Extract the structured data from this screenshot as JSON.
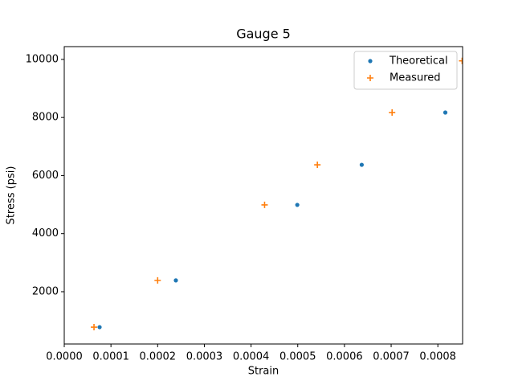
{
  "chart_data": {
    "type": "scatter",
    "title": "Gauge 5",
    "x_label": "Strain",
    "y_label": "Stress (psi)",
    "xlim": [
      0,
      0.000853
    ],
    "ylim": [
      200,
      10440
    ],
    "xticks": [
      {
        "value": 0,
        "label": "0.0000"
      },
      {
        "value": 0.0001,
        "label": "0.0001"
      },
      {
        "value": 0.0002,
        "label": "0.0002"
      },
      {
        "value": 0.0003,
        "label": "0.0003"
      },
      {
        "value": 0.0004,
        "label": "0.0004"
      },
      {
        "value": 0.0005,
        "label": "0.0005"
      },
      {
        "value": 0.0006,
        "label": "0.0006"
      },
      {
        "value": 0.0007,
        "label": "0.0007"
      },
      {
        "value": 0.0008,
        "label": "0.0008"
      }
    ],
    "yticks": [
      2000,
      4000,
      6000,
      8000,
      10000
    ],
    "legend": "upper right",
    "series": [
      {
        "name": "Theoretical",
        "color": "#1f77b4",
        "marker": "dot",
        "x": [
          7.57e-05,
          0.000239,
          0.000499,
          0.000637,
          0.000816
        ],
        "values": [
          780,
          2390,
          4990,
          6370,
          8170
        ]
      },
      {
        "name": "Measured",
        "color": "#ff7f0e",
        "marker": "plus",
        "x": [
          6.37e-05,
          0.0002,
          0.000429,
          0.000542,
          0.000702,
          0.000852
        ],
        "values": [
          780,
          2390,
          4990,
          6370,
          8170,
          9950
        ]
      }
    ]
  }
}
